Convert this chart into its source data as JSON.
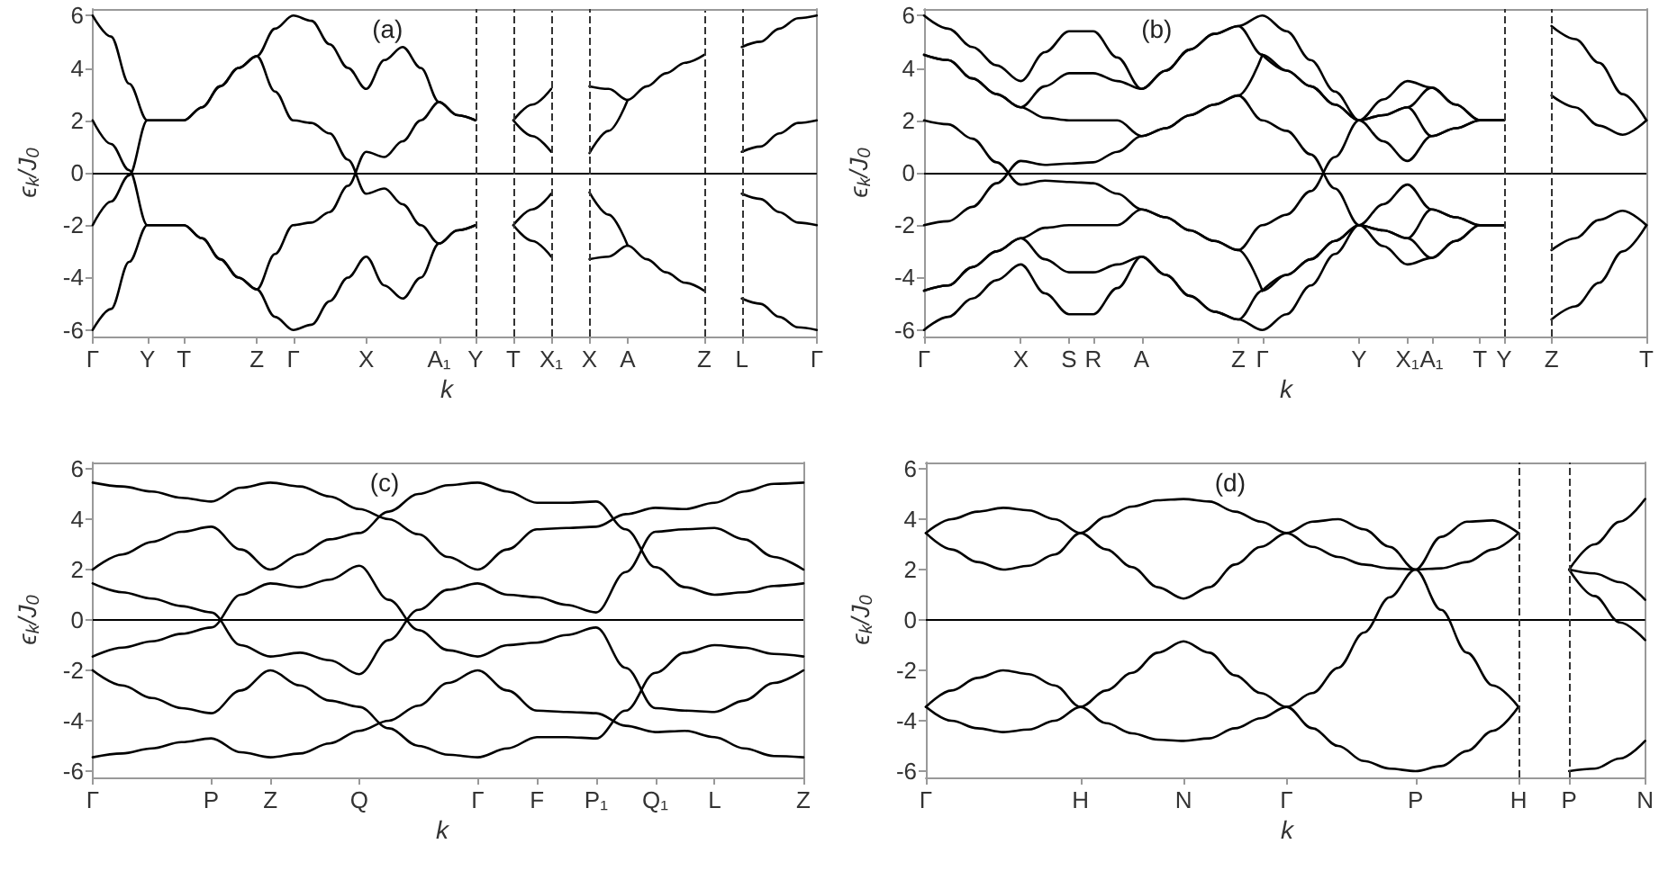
{
  "chart_data": [
    {
      "type": "line",
      "annotations": [
        "(a)"
      ],
      "xlabel": "k",
      "ylabel": "ϵ$_{k}$/J$_{0}$",
      "marker": "none",
      "line_style": "solid",
      "ylim": [
        -6.25,
        6.25
      ],
      "yticks": [
        -6,
        -4,
        -2,
        0,
        2,
        4,
        6
      ],
      "categories": [
        "Γ",
        null,
        null,
        "Y",
        null,
        "T",
        null,
        null,
        null,
        "Z",
        null,
        "Γ",
        null,
        null,
        null,
        "X",
        null,
        null,
        null,
        "A₁",
        null,
        null
      ],
      "ref_lines": [
        {
          "axis": "y",
          "value": 0,
          "color": "#000000",
          "line_style": "solid"
        }
      ],
      "series": [
        {
          "color": "#000000",
          "values": [
            6,
            5.2,
            3.4,
            2,
            2,
            2,
            2.5,
            3.3,
            4.0,
            4.45,
            5.5,
            6,
            5.8,
            4.9,
            4.0,
            3.2,
            4.3,
            4.8,
            4.0,
            2.7,
            2.2,
            2
          ]
        },
        {
          "color": "#000000",
          "values": [
            -6,
            -5.2,
            -3.4,
            -2,
            -2,
            -2,
            -2.5,
            -3.3,
            -4.0,
            -4.45,
            -5.5,
            -6,
            -5.8,
            -4.9,
            -4.0,
            -3.2,
            -4.3,
            -4.8,
            -4.0,
            -2.7,
            -2.2,
            -2
          ]
        },
        {
          "color": "#000000",
          "values": [
            -2,
            -1.1,
            -0.1,
            2,
            2,
            2,
            2.5,
            3.3,
            4.0,
            4.45,
            3.1,
            2,
            1.9,
            1.5,
            0.5,
            -0.8,
            -0.6,
            -1.2,
            -2.0,
            -2.7,
            -2.2,
            -2
          ]
        },
        {
          "color": "#000000",
          "values": [
            2,
            1.1,
            0.1,
            -2,
            -2,
            -2,
            -2.5,
            -3.3,
            -4.0,
            -4.45,
            -3.1,
            -2,
            -1.9,
            -1.5,
            -0.5,
            0.8,
            0.6,
            1.2,
            2.0,
            2.7,
            2.2,
            2
          ]
        }
      ]
    },
    {
      "type": "line",
      "tick_labels": "x",
      "ylim": [
        -6.25,
        6.25
      ],
      "yticks": [
        -6,
        -4,
        -2,
        0,
        2,
        4,
        6
      ],
      "marker": "none",
      "line_style": "solid",
      "categories": [
        "Y",
        null,
        "T",
        null,
        "X₁"
      ],
      "ref_lines": [
        {
          "axis": "y",
          "value": 0,
          "color": "#000000",
          "line_style": "solid"
        },
        {
          "axis": "x",
          "value": "Y",
          "color": "#333333",
          "line_style": "dashed"
        },
        {
          "axis": "x",
          "value": "T",
          "color": "#333333",
          "line_style": "dashed"
        },
        {
          "axis": "x",
          "value": "X₁",
          "color": "#333333",
          "line_style": "dashed"
        }
      ],
      "series": [
        {
          "color": "#000000",
          "values": [
            null,
            null,
            2,
            2.6,
            3.2
          ]
        },
        {
          "color": "#000000",
          "values": [
            null,
            null,
            2,
            1.4,
            0.8
          ]
        },
        {
          "color": "#000000",
          "values": [
            null,
            null,
            -2,
            -2.6,
            -3.2
          ]
        },
        {
          "color": "#000000",
          "values": [
            null,
            null,
            -2,
            -1.4,
            -0.8
          ]
        }
      ]
    },
    {
      "type": "line",
      "tick_labels": "x",
      "ylim": [
        -6.25,
        6.25
      ],
      "yticks": [
        -6,
        -4,
        -2,
        0,
        2,
        4,
        6
      ],
      "marker": "none",
      "line_style": "solid",
      "categories": [
        null,
        null,
        "X",
        null,
        "A",
        null,
        null,
        null,
        "Z"
      ],
      "ref_lines": [
        {
          "axis": "y",
          "value": 0,
          "color": "#000000",
          "line_style": "solid"
        },
        {
          "axis": "x",
          "value": "X",
          "color": "#333333",
          "line_style": "dashed"
        },
        {
          "axis": "x",
          "value": "Z",
          "color": "#333333",
          "line_style": "dashed"
        }
      ],
      "series": [
        {
          "color": "#000000",
          "values": [
            null,
            null,
            3.3,
            3.2,
            2.78,
            3.3,
            3.8,
            4.2,
            4.5
          ]
        },
        {
          "color": "#000000",
          "values": [
            null,
            null,
            0.75,
            1.6,
            2.78,
            null,
            null,
            null,
            null
          ]
        },
        {
          "color": "#000000",
          "values": [
            null,
            null,
            -3.3,
            -3.2,
            -2.78,
            -3.3,
            -3.8,
            -4.2,
            -4.5
          ]
        },
        {
          "color": "#000000",
          "values": [
            null,
            null,
            -0.75,
            -1.6,
            -2.78,
            null,
            null,
            null,
            null
          ]
        }
      ]
    },
    {
      "type": "line",
      "tick_labels": "x",
      "ylim": [
        -6.25,
        6.25
      ],
      "yticks": [
        -6,
        -4,
        -2,
        0,
        2,
        4,
        6
      ],
      "marker": "none",
      "line_style": "solid",
      "categories": [
        null,
        null,
        "L",
        null,
        null,
        null,
        "Γ"
      ],
      "ref_lines": [
        {
          "axis": "y",
          "value": 0,
          "color": "#000000",
          "line_style": "solid"
        },
        {
          "axis": "x",
          "value": "L",
          "color": "#333333",
          "line_style": "dashed"
        }
      ],
      "series": [
        {
          "color": "#000000",
          "values": [
            null,
            null,
            4.8,
            5.0,
            5.5,
            5.9,
            6
          ]
        },
        {
          "color": "#000000",
          "values": [
            null,
            null,
            0.8,
            1.0,
            1.5,
            1.9,
            2
          ]
        },
        {
          "color": "#000000",
          "values": [
            null,
            null,
            -0.8,
            -1.0,
            -1.5,
            -1.9,
            -2
          ]
        },
        {
          "color": "#000000",
          "values": [
            null,
            null,
            -4.8,
            -5.0,
            -5.5,
            -5.9,
            -6
          ]
        }
      ]
    },
    {
      "type": "line",
      "annotations": [
        "(b)"
      ],
      "xlabel": "k",
      "ylabel": "ϵ$_{k}$/J$_{0}$",
      "marker": "none",
      "line_style": "solid",
      "ylim": [
        -6.25,
        6.25
      ],
      "yticks": [
        -6,
        -4,
        -2,
        0,
        2,
        4,
        6
      ],
      "categories": [
        "Γ",
        null,
        null,
        null,
        "X",
        null,
        "S",
        "R",
        null,
        "A",
        null,
        null,
        null,
        "Z",
        "Γ",
        null,
        null,
        null,
        "Y",
        null,
        "X₁",
        "A₁",
        null,
        "T",
        null
      ],
      "ref_lines": [
        {
          "axis": "y",
          "value": 0,
          "color": "#000000",
          "line_style": "solid"
        }
      ],
      "series": [
        {
          "color": "#000000",
          "values": [
            6,
            5.5,
            4.8,
            4.1,
            3.5,
            4.6,
            5.4,
            5.4,
            4.4,
            3.2,
            3.9,
            4.7,
            5.3,
            5.6,
            6,
            5.4,
            4.3,
            3.1,
            2,
            2.8,
            3.5,
            3.25,
            2.6,
            2,
            2
          ]
        },
        {
          "color": "#000000",
          "values": [
            4.5,
            4.3,
            3.6,
            3.0,
            2.5,
            3.3,
            3.8,
            3.8,
            3.5,
            3.2,
            3.9,
            4.7,
            5.3,
            5.6,
            4.5,
            3.9,
            3.3,
            2.6,
            2,
            2.2,
            2.5,
            3.25,
            2.6,
            2,
            2
          ]
        },
        {
          "color": "#000000",
          "values": [
            4.5,
            4.3,
            3.6,
            3.0,
            2.5,
            2.1,
            2.0,
            2.0,
            2.0,
            1.4,
            1.7,
            2.2,
            2.6,
            2.95,
            4.5,
            null,
            null,
            null,
            null,
            null,
            null,
            null,
            null,
            null,
            null
          ]
        },
        {
          "color": "#000000",
          "values": [
            null,
            null,
            null,
            null,
            null,
            null,
            null,
            null,
            null,
            null,
            null,
            null,
            null,
            null,
            4.5,
            3.9,
            3.3,
            2.6,
            2,
            2.2,
            2.5,
            1.4,
            1.7,
            2,
            2
          ]
        },
        {
          "color": "#000000",
          "values": [
            -2,
            -1.85,
            -1.3,
            -0.4,
            0.45,
            0.3,
            0.35,
            0.4,
            0.8,
            1.4,
            1.7,
            2.2,
            2.6,
            2.95,
            2.0,
            1.6,
            0.7,
            -0.6,
            -2,
            -1.2,
            -0.45,
            -1.4,
            -1.7,
            -2,
            -2
          ]
        },
        {
          "color": "#000000",
          "values": [
            -6,
            -5.5,
            -4.8,
            -4.1,
            -3.5,
            -4.6,
            -5.4,
            -5.4,
            -4.4,
            -3.2,
            -3.9,
            -4.7,
            -5.3,
            -5.6,
            -6,
            -5.4,
            -4.3,
            -3.1,
            -2,
            -2.8,
            -3.5,
            -3.25,
            -2.6,
            -2,
            -2
          ]
        },
        {
          "color": "#000000",
          "values": [
            -4.5,
            -4.3,
            -3.6,
            -3.0,
            -2.5,
            -3.3,
            -3.8,
            -3.8,
            -3.5,
            -3.2,
            -3.9,
            -4.7,
            -5.3,
            -5.6,
            -4.5,
            -3.9,
            -3.3,
            -2.6,
            -2,
            -2.2,
            -2.5,
            -3.25,
            -2.6,
            -2,
            -2
          ]
        },
        {
          "color": "#000000",
          "values": [
            -4.5,
            -4.3,
            -3.6,
            -3.0,
            -2.5,
            -2.1,
            -2.0,
            -2.0,
            -2.0,
            -1.4,
            -1.7,
            -2.2,
            -2.6,
            -2.95,
            -4.5,
            null,
            null,
            null,
            null,
            null,
            null,
            null,
            null,
            null,
            null
          ]
        },
        {
          "color": "#000000",
          "values": [
            null,
            null,
            null,
            null,
            null,
            null,
            null,
            null,
            null,
            null,
            null,
            null,
            null,
            null,
            -4.5,
            -3.9,
            -3.3,
            -2.6,
            -2,
            -2.2,
            -2.5,
            -1.4,
            -1.7,
            -2,
            -2
          ]
        },
        {
          "color": "#000000",
          "values": [
            2,
            1.85,
            1.3,
            0.4,
            -0.45,
            -0.3,
            -0.35,
            -0.4,
            -0.8,
            -1.4,
            -1.7,
            -2.2,
            -2.6,
            -2.95,
            -2.0,
            -1.6,
            -0.7,
            0.6,
            2,
            1.2,
            0.45,
            1.4,
            1.7,
            2,
            2
          ]
        }
      ]
    },
    {
      "type": "line",
      "tick_labels": "x",
      "ylim": [
        -6.25,
        6.25
      ],
      "yticks": [
        -6,
        -4,
        -2,
        0,
        2,
        4,
        6
      ],
      "marker": "none",
      "line_style": "solid",
      "categories": [
        "Y",
        null,
        "Z",
        null,
        null,
        null,
        "T"
      ],
      "ref_lines": [
        {
          "axis": "y",
          "value": 0,
          "color": "#000000",
          "line_style": "solid"
        },
        {
          "axis": "x",
          "value": "Y",
          "color": "#333333",
          "line_style": "dashed"
        },
        {
          "axis": "x",
          "value": "Z",
          "color": "#333333",
          "line_style": "dashed"
        }
      ],
      "series": [
        {
          "color": "#000000",
          "values": [
            null,
            null,
            5.6,
            5.1,
            4.2,
            3.0,
            2
          ]
        },
        {
          "color": "#000000",
          "values": [
            null,
            null,
            2.95,
            2.5,
            1.8,
            1.45,
            2
          ]
        },
        {
          "color": "#000000",
          "values": [
            null,
            null,
            -5.6,
            -5.1,
            -4.2,
            -3.0,
            -2
          ]
        },
        {
          "color": "#000000",
          "values": [
            null,
            null,
            -2.95,
            -2.5,
            -1.8,
            -1.45,
            -2
          ]
        }
      ]
    },
    {
      "type": "line",
      "annotations": [
        "(c)"
      ],
      "xlabel": "k",
      "ylabel": "ϵ$_{k}$/J$_{0}$",
      "marker": "none",
      "line_style": "solid",
      "ylim": [
        -6.25,
        6.25
      ],
      "yticks": [
        -6,
        -4,
        -2,
        0,
        2,
        4,
        6
      ],
      "categories": [
        "Γ",
        null,
        null,
        null,
        "P",
        null,
        "Z",
        null,
        null,
        "Q",
        null,
        null,
        null,
        "Γ",
        null,
        "F",
        null,
        "P₁",
        null,
        "Q₁",
        null,
        "L",
        null,
        null,
        "Z"
      ],
      "ref_lines": [
        {
          "axis": "y",
          "value": 0,
          "color": "#000000",
          "line_style": "solid"
        }
      ],
      "series": [
        {
          "color": "#000000",
          "values": [
            5.45,
            5.3,
            5.1,
            4.85,
            4.7,
            5.25,
            5.45,
            5.3,
            4.9,
            4.4,
            4.0,
            3.4,
            2.5,
            2.0,
            2.8,
            3.6,
            3.65,
            3.7,
            4.2,
            4.45,
            4.4,
            4.65,
            5.1,
            5.4,
            5.45
          ]
        },
        {
          "color": "#000000",
          "values": [
            2.0,
            2.6,
            3.1,
            3.5,
            3.7,
            2.8,
            2.0,
            2.6,
            3.2,
            3.45,
            4.3,
            5.0,
            5.35,
            5.45,
            5.1,
            4.65,
            4.65,
            4.7,
            3.6,
            2.1,
            1.3,
            1.0,
            1.1,
            1.35,
            1.45
          ]
        },
        {
          "color": "#000000",
          "values": [
            1.45,
            1.1,
            0.85,
            0.55,
            0.3,
            -1.0,
            -1.45,
            -1.3,
            -1.6,
            -2.15,
            -0.8,
            0.4,
            1.2,
            1.45,
            1.0,
            0.9,
            0.6,
            0.3,
            1.9,
            3.5,
            3.6,
            3.65,
            3.2,
            2.5,
            2.0
          ]
        },
        {
          "color": "#000000",
          "values": [
            -1.45,
            -1.1,
            -0.85,
            -0.55,
            -0.3,
            1.0,
            1.45,
            1.3,
            1.6,
            2.15,
            0.8,
            -0.4,
            -1.2,
            -1.45,
            -1.0,
            -0.9,
            -0.6,
            -0.3,
            -1.9,
            -3.5,
            -3.6,
            -3.65,
            -3.2,
            -2.5,
            -2.0
          ]
        },
        {
          "color": "#000000",
          "values": [
            -2.0,
            -2.6,
            -3.1,
            -3.5,
            -3.7,
            -2.8,
            -2.0,
            -2.6,
            -3.2,
            -3.45,
            -4.3,
            -5.0,
            -5.35,
            -5.45,
            -5.1,
            -4.65,
            -4.65,
            -4.7,
            -3.6,
            -2.1,
            -1.3,
            -1.0,
            -1.1,
            -1.35,
            -1.45
          ]
        },
        {
          "color": "#000000",
          "values": [
            -5.45,
            -5.3,
            -5.1,
            -4.85,
            -4.7,
            -5.25,
            -5.45,
            -5.3,
            -4.9,
            -4.4,
            -4.0,
            -3.4,
            -2.5,
            -2.0,
            -2.8,
            -3.6,
            -3.65,
            -3.7,
            -4.2,
            -4.45,
            -4.4,
            -4.65,
            -5.1,
            -5.4,
            -5.45
          ]
        }
      ]
    },
    {
      "type": "line",
      "annotations": [
        "(d)"
      ],
      "xlabel": "k",
      "ylabel": "ϵ$_{k}$/J$_{0}$",
      "marker": "none",
      "line_style": "solid",
      "ylim": [
        -6.25,
        6.25
      ],
      "yticks": [
        -6,
        -4,
        -2,
        0,
        2,
        4,
        6
      ],
      "categories": [
        "Γ",
        null,
        null,
        null,
        null,
        null,
        "H",
        null,
        null,
        null,
        "N",
        null,
        null,
        null,
        "Γ",
        null,
        null,
        null,
        null,
        "P",
        null,
        null,
        null,
        null
      ],
      "ref_lines": [
        {
          "axis": "y",
          "value": 0,
          "color": "#000000",
          "line_style": "solid"
        }
      ],
      "series": [
        {
          "color": "#000000",
          "values": [
            3.45,
            4.0,
            4.3,
            4.45,
            4.35,
            4.0,
            3.45,
            2.8,
            2.1,
            1.3,
            0.85,
            1.3,
            2.2,
            2.9,
            3.45,
            3.9,
            4.0,
            3.6,
            2.9,
            2.0,
            0.4,
            -1.3,
            -2.6,
            -3.45
          ]
        },
        {
          "color": "#000000",
          "values": [
            3.45,
            2.8,
            2.3,
            2.0,
            2.15,
            2.6,
            3.45,
            4.1,
            4.5,
            4.75,
            4.8,
            4.7,
            4.3,
            3.9,
            3.45,
            2.9,
            2.5,
            2.2,
            2.05,
            2.0,
            2.05,
            2.3,
            2.8,
            3.45
          ]
        },
        {
          "color": "#000000",
          "values": [
            -3.45,
            -2.8,
            -2.3,
            -2.0,
            -2.15,
            -2.6,
            -3.45,
            -4.1,
            -4.5,
            -4.75,
            -4.8,
            -4.7,
            -4.3,
            -3.9,
            -3.45,
            -2.9,
            -1.9,
            -0.5,
            0.9,
            2.0,
            3.3,
            3.9,
            3.95,
            3.45
          ]
        },
        {
          "color": "#000000",
          "values": [
            -3.45,
            -4.0,
            -4.3,
            -4.45,
            -4.35,
            -4.0,
            -3.45,
            -2.8,
            -2.1,
            -1.3,
            -0.85,
            -1.3,
            -2.2,
            -2.9,
            -3.45,
            -4.3,
            -5.0,
            -5.6,
            -5.9,
            -6.0,
            -5.8,
            -5.2,
            -4.4,
            -3.45
          ]
        }
      ]
    },
    {
      "type": "line",
      "tick_labels": "x",
      "ylim": [
        -6.25,
        6.25
      ],
      "yticks": [
        -6,
        -4,
        -2,
        0,
        2,
        4,
        6
      ],
      "marker": "none",
      "line_style": "solid",
      "categories": [
        "H",
        null,
        "P",
        null,
        null,
        "N"
      ],
      "ref_lines": [
        {
          "axis": "y",
          "value": 0,
          "color": "#000000",
          "line_style": "solid"
        },
        {
          "axis": "x",
          "value": "H",
          "color": "#333333",
          "line_style": "dashed"
        },
        {
          "axis": "x",
          "value": "P",
          "color": "#333333",
          "line_style": "dashed"
        }
      ],
      "series": [
        {
          "color": "#000000",
          "values": [
            null,
            null,
            2.0,
            3.0,
            3.9,
            4.8
          ]
        },
        {
          "color": "#000000",
          "values": [
            null,
            null,
            2.0,
            1.85,
            1.5,
            0.8
          ]
        },
        {
          "color": "#000000",
          "values": [
            null,
            null,
            2.0,
            0.95,
            -0.1,
            -0.8
          ]
        },
        {
          "color": "#000000",
          "values": [
            null,
            null,
            -6.0,
            -5.9,
            -5.5,
            -4.8
          ]
        }
      ]
    }
  ]
}
